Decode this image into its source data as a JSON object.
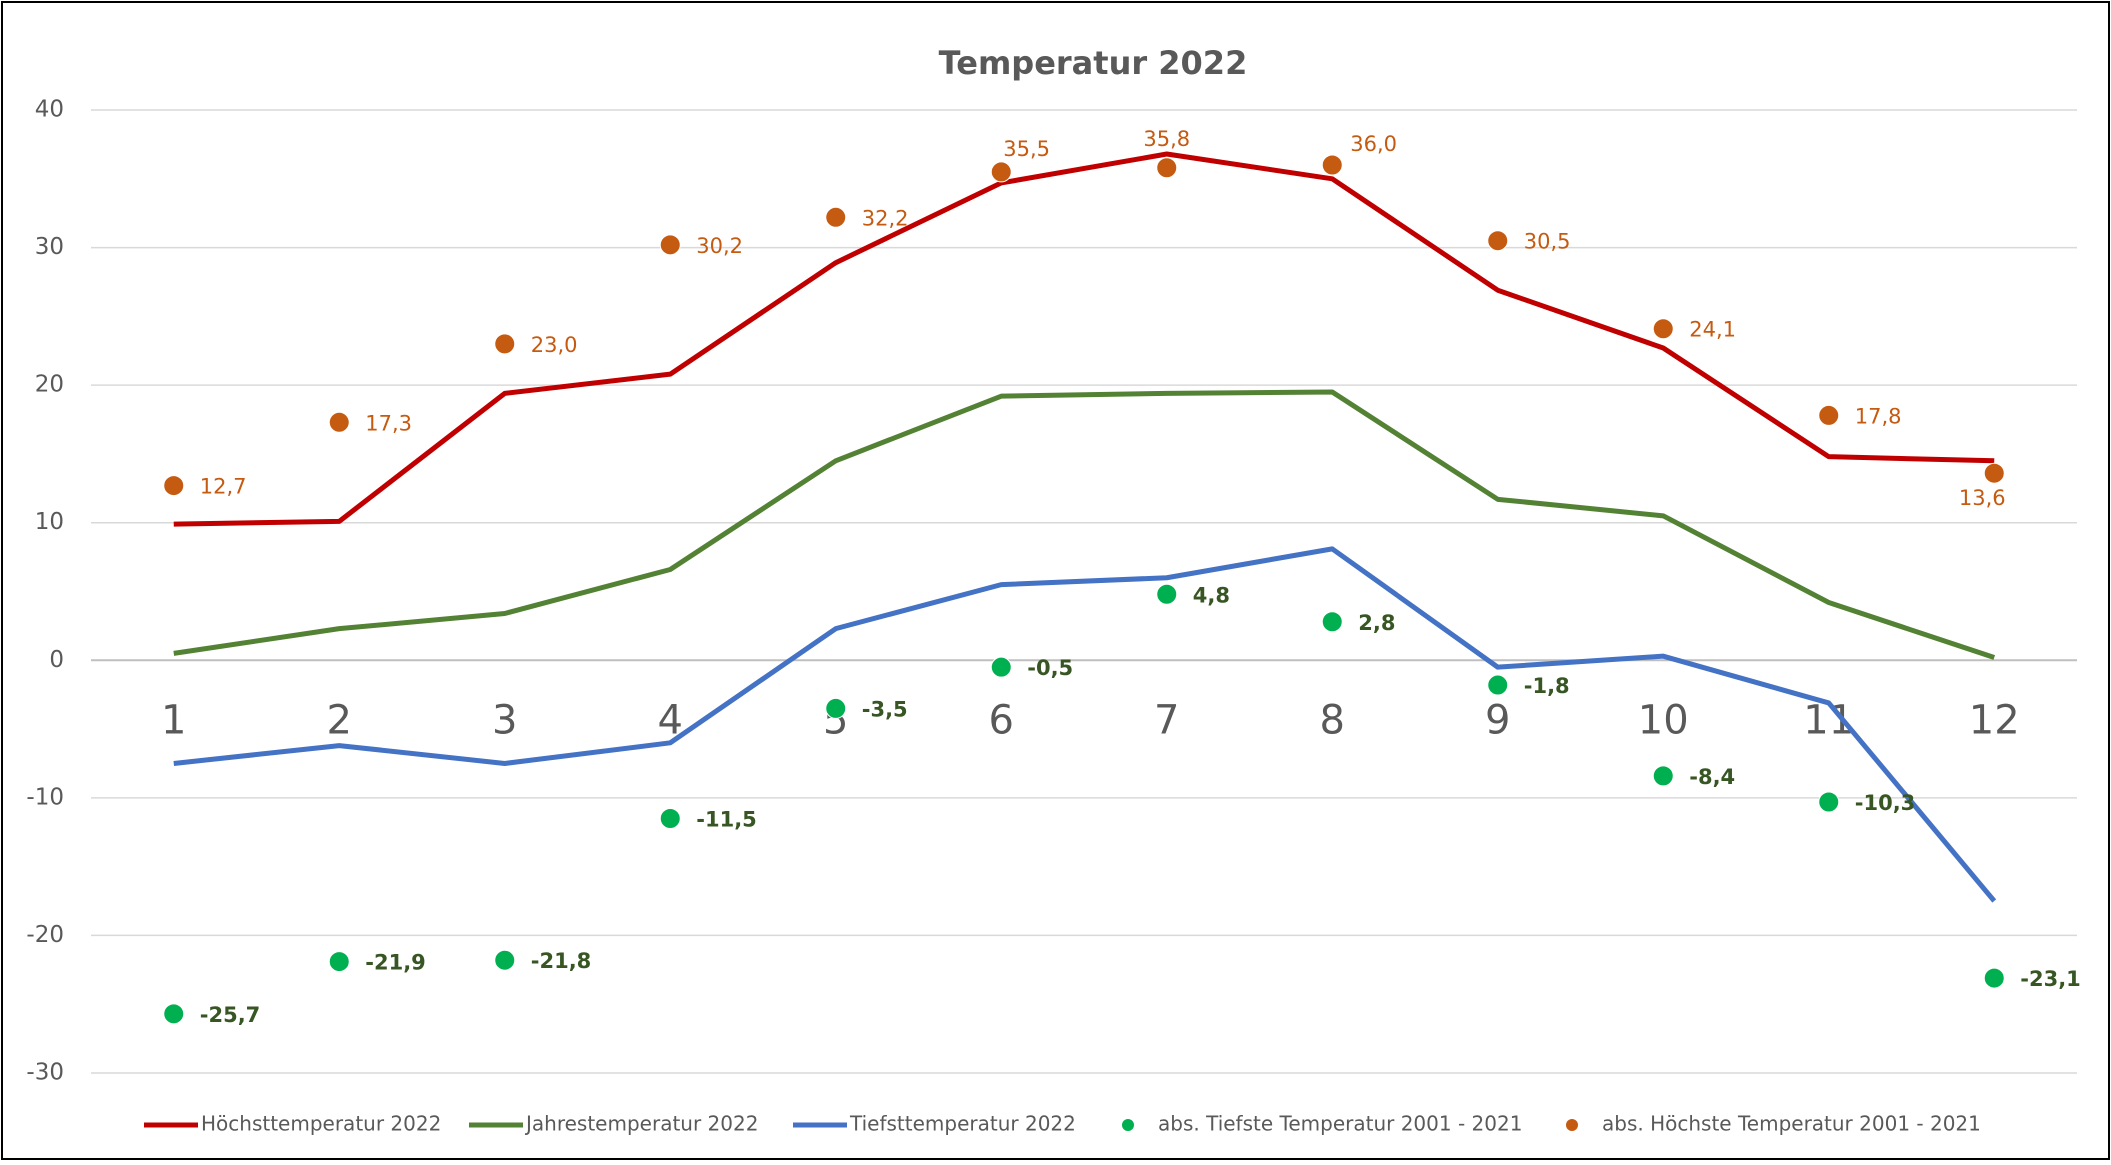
{
  "chart_data": {
    "type": "line",
    "title": "Temperatur  2022",
    "categories": [
      "1",
      "2",
      "3",
      "4",
      "5",
      "6",
      "7",
      "8",
      "9",
      "10",
      "11",
      "12"
    ],
    "ylim": [
      -30,
      40
    ],
    "yticks": [
      -30,
      -20,
      -10,
      0,
      10,
      20,
      30,
      40
    ],
    "grid": true,
    "legend": "bottom",
    "series": [
      {
        "name": "Höchsttemperatur 2022",
        "mark": "line",
        "color": "#c00000",
        "values": [
          9.9,
          10.1,
          19.4,
          20.8,
          28.9,
          34.7,
          36.8,
          35.0,
          26.9,
          22.7,
          14.8,
          14.5
        ]
      },
      {
        "name": "Jahrestemperatur 2022",
        "mark": "line",
        "color": "#548235",
        "values": [
          0.5,
          2.3,
          3.4,
          6.6,
          14.5,
          19.2,
          19.4,
          19.5,
          11.7,
          10.5,
          4.2,
          0.2
        ]
      },
      {
        "name": "Tiefsttemperatur 2022",
        "mark": "line",
        "color": "#4472c4",
        "values": [
          -7.5,
          -6.2,
          -7.5,
          -6.0,
          2.3,
          5.5,
          6.0,
          8.1,
          -0.5,
          0.3,
          -3.1,
          -17.5
        ]
      },
      {
        "name": "abs. Tiefste Temperatur 2001 - 2021",
        "mark": "dot",
        "color": "#00b050",
        "label_color": "#375623",
        "values": [
          -25.7,
          -21.9,
          -21.8,
          -11.5,
          -3.5,
          -0.5,
          4.8,
          2.8,
          -1.8,
          -8.4,
          -10.3,
          -23.1
        ],
        "value_labels": [
          "-25,7",
          "-21,9",
          "-21,8",
          "-11,5",
          "-3,5",
          "-0,5",
          "4,8",
          "2,8",
          "-1,8",
          "-8,4",
          "-10,3",
          "-23,1"
        ]
      },
      {
        "name": "abs. Höchste Temperatur 2001 - 2021",
        "mark": "dot",
        "color": "#c55a11",
        "label_color": "#c55a11",
        "values": [
          12.7,
          17.3,
          23.0,
          30.2,
          32.2,
          35.5,
          35.8,
          36.0,
          30.5,
          24.1,
          17.8,
          13.6
        ],
        "value_labels": [
          "12,7",
          "17,3",
          "23,0",
          "30,2",
          "32,2",
          "35,5",
          "35,8",
          "36,0",
          "30,5",
          "24,1",
          "17,8",
          "13,6"
        ]
      }
    ]
  }
}
